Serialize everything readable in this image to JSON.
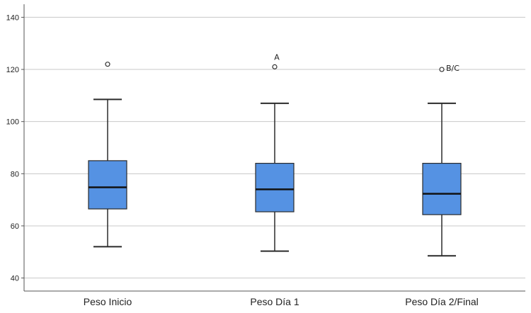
{
  "chart_data": {
    "type": "boxplot",
    "title": "",
    "xlabel": "",
    "ylabel": "",
    "ylim": [
      35,
      145
    ],
    "yticks": [
      40,
      60,
      80,
      100,
      120,
      140
    ],
    "grid": true,
    "categories": [
      "Peso Inicio",
      "Peso Día 1",
      "Peso Día 2/Final"
    ],
    "boxes": [
      {
        "category": "Peso Inicio",
        "whisker_low": 52,
        "q1": 66.5,
        "median": 74.8,
        "q3": 85,
        "whisker_high": 108.5,
        "outliers": [
          122
        ],
        "outlier_labels": [
          ""
        ]
      },
      {
        "category": "Peso Día 1",
        "whisker_low": 50.3,
        "q1": 65.4,
        "median": 74,
        "q3": 84,
        "whisker_high": 107,
        "outliers": [
          121
        ],
        "outlier_labels": [
          "A"
        ]
      },
      {
        "category": "Peso Día 2/Final",
        "whisker_low": 48.5,
        "q1": 64.3,
        "median": 72.3,
        "q3": 84,
        "whisker_high": 107,
        "outliers": [
          120
        ],
        "outlier_labels": [
          "B/C"
        ]
      }
    ]
  },
  "colors": {
    "box_fill": "#5592e3",
    "box_stroke": "#2b2b2b",
    "grid": "#c8c8c8",
    "axis": "#555555"
  }
}
